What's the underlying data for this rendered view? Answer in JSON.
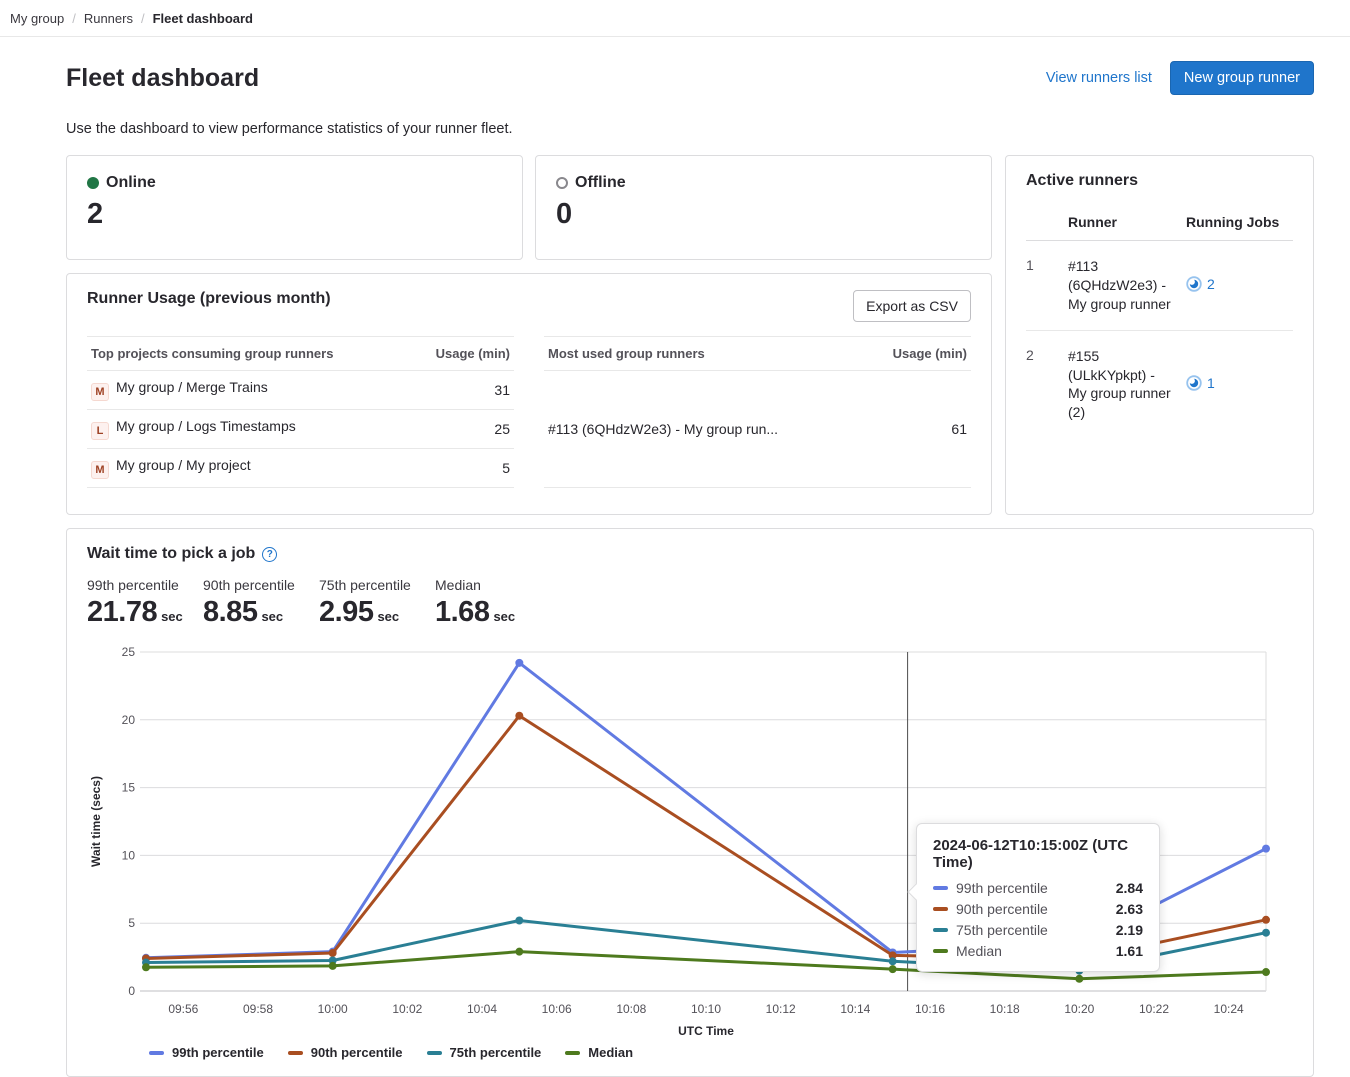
{
  "breadcrumb": {
    "separator": "/",
    "items": [
      "My group",
      "Runners",
      "Fleet dashboard"
    ]
  },
  "header": {
    "title": "Fleet dashboard",
    "view_runners_link": "View runners list",
    "new_runner_button": "New group runner",
    "description": "Use the dashboard to view performance statistics of your runner fleet."
  },
  "status_cards": {
    "online": {
      "label": "Online",
      "value": "2",
      "color": "#217645"
    },
    "offline": {
      "label": "Offline",
      "value": "0",
      "color": "#89888d"
    }
  },
  "active_runners": {
    "title": "Active runners",
    "columns": {
      "index": "",
      "runner": "Runner",
      "jobs": "Running Jobs"
    },
    "rows": [
      {
        "index": "1",
        "runner": "#113 (6QHdzW2e3) - My group runner",
        "jobs": "2"
      },
      {
        "index": "2",
        "runner": "#155 (ULkKYpkpt) - My group runner (2)",
        "jobs": "1"
      }
    ]
  },
  "runner_usage": {
    "title": "Runner Usage (previous month)",
    "export_button": "Export as CSV",
    "projects_table": {
      "columns": [
        "Top projects consuming group runners",
        "Usage (min)"
      ],
      "rows": [
        {
          "avatar": "M",
          "name": "My group / Merge Trains",
          "usage": "31"
        },
        {
          "avatar": "L",
          "name": "My group / Logs Timestamps",
          "usage": "25"
        },
        {
          "avatar": "M",
          "name": "My group / My project",
          "usage": "5"
        }
      ]
    },
    "runners_table": {
      "columns": [
        "Most used group runners",
        "Usage (min)"
      ],
      "rows": [
        {
          "name": "#113 (6QHdzW2e3) - My group run...",
          "usage": "61"
        }
      ]
    }
  },
  "wait_time": {
    "title": "Wait time to pick a job",
    "help_icon": "?",
    "stats": [
      {
        "label": "99th percentile",
        "value": "21.78",
        "unit": "sec"
      },
      {
        "label": "90th percentile",
        "value": "8.85",
        "unit": "sec"
      },
      {
        "label": "75th percentile",
        "value": "2.95",
        "unit": "sec"
      },
      {
        "label": "Median",
        "value": "1.68",
        "unit": "sec"
      }
    ]
  },
  "chart_data": {
    "type": "line",
    "title": "Wait time to pick a job",
    "xlabel": "UTC Time",
    "ylabel": "Wait time (secs)",
    "ylim": [
      0,
      25
    ],
    "grid": true,
    "legend_position": "bottom-left",
    "x": [
      "09:55",
      "10:00",
      "10:05",
      "10:15",
      "10:20",
      "10:25"
    ],
    "x_ticks": [
      "09:56",
      "09:58",
      "10:00",
      "10:02",
      "10:04",
      "10:06",
      "10:08",
      "10:10",
      "10:12",
      "10:14",
      "10:16",
      "10:18",
      "10:20",
      "10:22",
      "10:24"
    ],
    "series": [
      {
        "name": "99th percentile",
        "color": "#617ae2",
        "values": [
          2.45,
          2.9,
          24.2,
          2.84,
          3.5,
          10.5
        ]
      },
      {
        "name": "90th percentile",
        "color": "#a94e21",
        "values": [
          2.4,
          2.8,
          20.3,
          2.63,
          2.35,
          5.25
        ]
      },
      {
        "name": "75th percentile",
        "color": "#2a7f94",
        "values": [
          2.1,
          2.25,
          5.2,
          2.19,
          1.5,
          4.3
        ]
      },
      {
        "name": "Median",
        "color": "#4e7a1e",
        "values": [
          1.75,
          1.85,
          2.9,
          1.61,
          0.9,
          1.4
        ]
      }
    ],
    "crosshair_x": "10:15:24",
    "tooltip": {
      "title": "2024-06-12T10:15:00Z (UTC Time)",
      "rows": [
        {
          "name": "99th percentile",
          "value": "2.84"
        },
        {
          "name": "90th percentile",
          "value": "2.63"
        },
        {
          "name": "75th percentile",
          "value": "2.19"
        },
        {
          "name": "Median",
          "value": "1.61"
        }
      ]
    }
  }
}
